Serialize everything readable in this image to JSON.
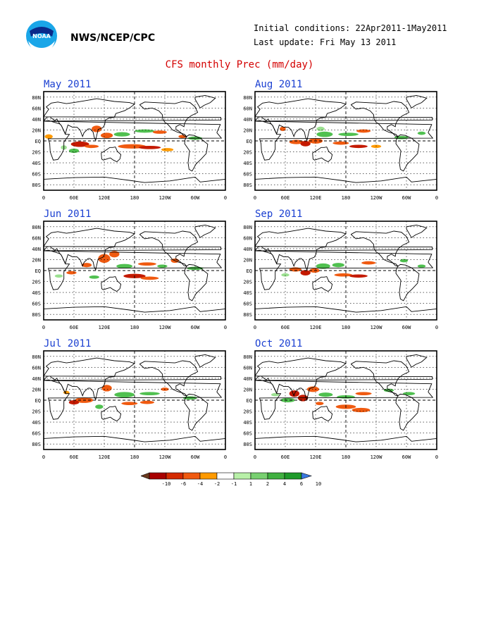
{
  "header": {
    "org": "NWS/NCEP/CPC",
    "initial_conditions": "Initial conditions: 22Apr2011-1May2011",
    "last_update": "Last update: Fri May 13 2011",
    "logo_text": "NOAA"
  },
  "title": "CFS monthly Prec (mm/day)",
  "axes": {
    "lat_labels": [
      "80N",
      "60N",
      "40N",
      "20N",
      "EQ",
      "20S",
      "40S",
      "60S",
      "80S"
    ],
    "lon_labels": [
      "0",
      "60E",
      "120E",
      "180",
      "120W",
      "60W",
      "0"
    ]
  },
  "panels": [
    {
      "id": "may",
      "title": "May 2011"
    },
    {
      "id": "aug",
      "title": "Aug 2011"
    },
    {
      "id": "jun",
      "title": "Jun 2011"
    },
    {
      "id": "sep",
      "title": "Sep 2011"
    },
    {
      "id": "jul",
      "title": "Jul 2011"
    },
    {
      "id": "oct",
      "title": "Oct 2011"
    }
  ],
  "colorbar": {
    "labels": [
      "-10",
      "-6",
      "-4",
      "-2",
      "-1",
      "1",
      "2",
      "4",
      "6",
      "10"
    ],
    "colors": [
      "#6b3a1e",
      "#a80000",
      "#d42a00",
      "#f05a10",
      "#ff9a00",
      "#ffffff",
      "#b8f0a8",
      "#78d070",
      "#40b040",
      "#1e9a2a",
      "#3a78e0"
    ]
  },
  "anomaly_colors": {
    "strong_dry": "#c41a00",
    "dry": "#f05a10",
    "weak_dry": "#ff9a00",
    "weak_wet": "#9be090",
    "wet": "#50c050",
    "strong_wet": "#1e9a2a"
  }
}
